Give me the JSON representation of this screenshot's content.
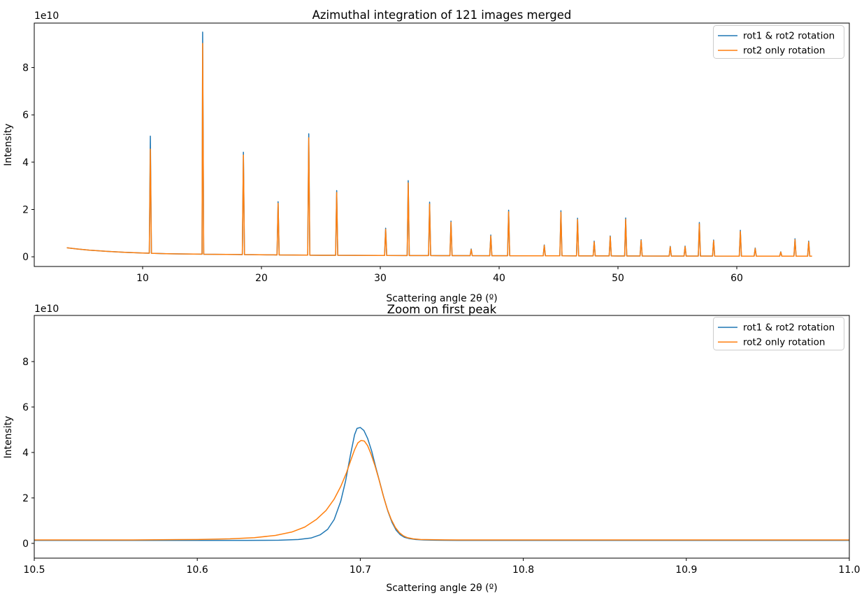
{
  "figure": {
    "background_color": "#ffffff",
    "series_colors": {
      "blue": "#1f77b4",
      "orange": "#ff7f0e"
    }
  },
  "chart_data": [
    {
      "type": "line",
      "title": "Azimuthal integration of 121 images merged",
      "xlabel": "Scattering angle 2θ (º)",
      "ylabel": "Intensity",
      "y_offset_text": "1e10",
      "grid": false,
      "legend_position": "upper right",
      "xlim": [
        0.88,
        69.47
      ],
      "ylim": [
        -0.41,
        9.88
      ],
      "x_tick_values": [
        10,
        20,
        30,
        40,
        50,
        60
      ],
      "x_tick_labels": [
        "10",
        "20",
        "30",
        "40",
        "50",
        "60"
      ],
      "y_tick_values": [
        0,
        2,
        4,
        6,
        8
      ],
      "y_tick_labels": [
        "0",
        "2",
        "4",
        "6",
        "8"
      ],
      "units_note": "intensity axis values are multiples of 1e10",
      "series": [
        {
          "name": "rot1 & rot2 rotation",
          "color": "#1f77b4"
        },
        {
          "name": "rot2 only rotation",
          "color": "#ff7f0e"
        }
      ],
      "background_profile": [
        [
          3.62,
          0.38
        ],
        [
          4.5,
          0.33
        ],
        [
          5.5,
          0.28
        ],
        [
          7.0,
          0.23
        ],
        [
          8.5,
          0.19
        ],
        [
          10.0,
          0.16
        ],
        [
          12.0,
          0.13
        ],
        [
          15.0,
          0.11
        ],
        [
          18.0,
          0.095
        ],
        [
          21.0,
          0.08
        ],
        [
          25.0,
          0.065
        ],
        [
          30.0,
          0.055
        ],
        [
          35.0,
          0.05
        ],
        [
          40.0,
          0.045
        ],
        [
          45.0,
          0.04
        ],
        [
          50.0,
          0.035
        ],
        [
          55.0,
          0.03
        ],
        [
          60.0,
          0.028
        ],
        [
          66.33,
          0.025
        ]
      ],
      "peak_halfwidth_deg": 0.09,
      "peaks_2theta_blue_orange": [
        [
          10.65,
          5.1,
          4.55
        ],
        [
          15.05,
          9.5,
          9.02
        ],
        [
          18.48,
          4.42,
          4.3
        ],
        [
          21.4,
          2.33,
          2.26
        ],
        [
          23.98,
          5.2,
          5.03
        ],
        [
          26.33,
          2.8,
          2.72
        ],
        [
          30.45,
          1.21,
          1.16
        ],
        [
          32.35,
          3.22,
          3.12
        ],
        [
          34.15,
          2.31,
          2.23
        ],
        [
          35.95,
          1.51,
          1.46
        ],
        [
          37.65,
          0.33,
          0.31
        ],
        [
          39.3,
          0.92,
          0.88
        ],
        [
          40.8,
          1.97,
          1.9
        ],
        [
          43.8,
          0.5,
          0.48
        ],
        [
          45.2,
          1.95,
          1.88
        ],
        [
          46.6,
          1.63,
          1.57
        ],
        [
          48.0,
          0.66,
          0.63
        ],
        [
          49.35,
          0.88,
          0.85
        ],
        [
          50.65,
          1.64,
          1.58
        ],
        [
          51.95,
          0.72,
          0.69
        ],
        [
          54.4,
          0.44,
          0.42
        ],
        [
          55.65,
          0.45,
          0.43
        ],
        [
          56.85,
          1.45,
          1.39
        ],
        [
          58.05,
          0.71,
          0.68
        ],
        [
          60.3,
          1.12,
          1.07
        ],
        [
          61.55,
          0.37,
          0.35
        ],
        [
          63.7,
          0.21,
          0.2
        ],
        [
          64.9,
          0.76,
          0.72
        ],
        [
          66.05,
          0.66,
          0.63
        ]
      ]
    },
    {
      "type": "line",
      "title": "Zoom on first peak",
      "xlabel": "Scattering angle 2θ (º)",
      "ylabel": "Intensity",
      "y_offset_text": "1e10",
      "grid": false,
      "legend_position": "upper right",
      "xlim": [
        10.5,
        11.0
      ],
      "ylim": [
        -0.65,
        10.03
      ],
      "x_tick_values": [
        10.5,
        10.6,
        10.7,
        10.8,
        10.9,
        11.0
      ],
      "x_tick_labels": [
        "10.5",
        "10.6",
        "10.7",
        "10.8",
        "10.9",
        "11.0"
      ],
      "y_tick_values": [
        0,
        2,
        4,
        6,
        8
      ],
      "y_tick_labels": [
        "0",
        "2",
        "4",
        "6",
        "8"
      ],
      "units_note": "intensity axis values are multiples of 1e10",
      "series": [
        {
          "name": "rot1 & rot2 rotation",
          "color": "#1f77b4",
          "points": [
            [
              10.5,
              0.13
            ],
            [
              10.6,
              0.13
            ],
            [
              10.63,
              0.13
            ],
            [
              10.65,
              0.14
            ],
            [
              10.662,
              0.17
            ],
            [
              10.67,
              0.24
            ],
            [
              10.6755,
              0.38
            ],
            [
              10.68,
              0.62
            ],
            [
              10.684,
              1.05
            ],
            [
              10.688,
              1.85
            ],
            [
              10.691,
              2.75
            ],
            [
              10.694,
              3.9
            ],
            [
              10.6965,
              4.78
            ],
            [
              10.698,
              5.06
            ],
            [
              10.7,
              5.1
            ],
            [
              10.7022,
              4.97
            ],
            [
              10.7045,
              4.62
            ],
            [
              10.707,
              4.06
            ],
            [
              10.7095,
              3.35
            ],
            [
              10.712,
              2.68
            ],
            [
              10.7145,
              2.0
            ],
            [
              10.717,
              1.4
            ],
            [
              10.7195,
              0.92
            ],
            [
              10.722,
              0.58
            ],
            [
              10.7245,
              0.38
            ],
            [
              10.727,
              0.27
            ],
            [
              10.73,
              0.21
            ],
            [
              10.734,
              0.17
            ],
            [
              10.739,
              0.15
            ],
            [
              10.746,
              0.14
            ],
            [
              10.76,
              0.13
            ],
            [
              10.8,
              0.13
            ],
            [
              10.9,
              0.13
            ],
            [
              11.0,
              0.13
            ]
          ]
        },
        {
          "name": "rot2 only rotation",
          "color": "#ff7f0e",
          "points": [
            [
              10.5,
              0.15
            ],
            [
              10.56,
              0.15
            ],
            [
              10.6,
              0.17
            ],
            [
              10.62,
              0.2
            ],
            [
              10.635,
              0.25
            ],
            [
              10.648,
              0.35
            ],
            [
              10.658,
              0.5
            ],
            [
              10.666,
              0.72
            ],
            [
              10.673,
              1.05
            ],
            [
              10.679,
              1.45
            ],
            [
              10.684,
              1.95
            ],
            [
              10.688,
              2.5
            ],
            [
              10.6915,
              3.1
            ],
            [
              10.694,
              3.62
            ],
            [
              10.6965,
              4.12
            ],
            [
              10.6985,
              4.42
            ],
            [
              10.7005,
              4.53
            ],
            [
              10.7025,
              4.5
            ],
            [
              10.7045,
              4.3
            ],
            [
              10.7065,
              3.95
            ],
            [
              10.709,
              3.42
            ],
            [
              10.7115,
              2.8
            ],
            [
              10.714,
              2.12
            ],
            [
              10.7165,
              1.52
            ],
            [
              10.719,
              1.05
            ],
            [
              10.7215,
              0.7
            ],
            [
              10.724,
              0.47
            ],
            [
              10.7265,
              0.33
            ],
            [
              10.729,
              0.25
            ],
            [
              10.7325,
              0.2
            ],
            [
              10.737,
              0.17
            ],
            [
              10.744,
              0.16
            ],
            [
              10.76,
              0.15
            ],
            [
              10.8,
              0.15
            ],
            [
              10.9,
              0.15
            ],
            [
              11.0,
              0.15
            ]
          ]
        }
      ]
    }
  ]
}
